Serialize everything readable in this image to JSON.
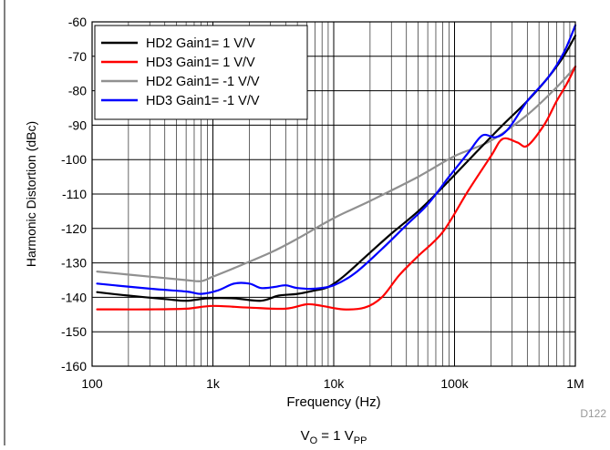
{
  "chart_data": {
    "type": "line",
    "xlabel": "Frequency (Hz)",
    "ylabel": "Harmonic Distortion (dBc)",
    "xscale": "log",
    "xlim": [
      100,
      1000000
    ],
    "ylim": [
      -160,
      -60
    ],
    "x_ticks": [
      {
        "value": 100,
        "label": "100"
      },
      {
        "value": 1000,
        "label": "1k"
      },
      {
        "value": 10000,
        "label": "10k"
      },
      {
        "value": 100000,
        "label": "100k"
      },
      {
        "value": 1000000,
        "label": "1M"
      }
    ],
    "y_ticks": [
      -60,
      -70,
      -80,
      -90,
      -100,
      -110,
      -120,
      -130,
      -140,
      -150,
      -160
    ],
    "grid": true,
    "legend_position": "top-left",
    "caption_main": "V",
    "caption_sub1": "O",
    "caption_mid": " = 1 V",
    "caption_sub2": "PP",
    "figure_id": "D122",
    "series": [
      {
        "name": "HD2 Gain1= 1 V/V",
        "color": "#000000",
        "points": [
          [
            110,
            -138.5
          ],
          [
            200,
            -139.5
          ],
          [
            400,
            -140.5
          ],
          [
            600,
            -141
          ],
          [
            900,
            -140.3
          ],
          [
            1500,
            -140.3
          ],
          [
            2500,
            -141
          ],
          [
            3500,
            -139.5
          ],
          [
            5000,
            -139
          ],
          [
            7000,
            -138
          ],
          [
            9000,
            -137
          ],
          [
            12000,
            -134
          ],
          [
            20000,
            -127
          ],
          [
            30000,
            -121.5
          ],
          [
            50000,
            -115
          ],
          [
            80000,
            -108
          ],
          [
            150000,
            -98
          ],
          [
            250000,
            -90
          ],
          [
            400000,
            -83
          ],
          [
            600000,
            -76
          ],
          [
            800000,
            -70
          ],
          [
            1000000,
            -64
          ]
        ]
      },
      {
        "name": "HD3 Gain1= 1 V/V",
        "color": "#ff0000",
        "points": [
          [
            110,
            -143.5
          ],
          [
            300,
            -143.5
          ],
          [
            600,
            -143.3
          ],
          [
            1000,
            -142.5
          ],
          [
            2000,
            -143
          ],
          [
            4000,
            -143.3
          ],
          [
            6000,
            -142
          ],
          [
            8000,
            -142.5
          ],
          [
            12000,
            -143.5
          ],
          [
            18000,
            -143
          ],
          [
            25000,
            -140
          ],
          [
            35000,
            -133.5
          ],
          [
            50000,
            -128
          ],
          [
            80000,
            -121
          ],
          [
            130000,
            -109
          ],
          [
            200000,
            -99
          ],
          [
            250000,
            -94
          ],
          [
            330000,
            -95
          ],
          [
            400000,
            -96
          ],
          [
            550000,
            -90
          ],
          [
            700000,
            -83
          ],
          [
            850000,
            -78
          ],
          [
            1000000,
            -73
          ]
        ]
      },
      {
        "name": "HD2 Gain1= -1 V/V",
        "color": "#909090",
        "points": [
          [
            110,
            -132.5
          ],
          [
            300,
            -134
          ],
          [
            600,
            -135
          ],
          [
            800,
            -135.3
          ],
          [
            1000,
            -134
          ],
          [
            1500,
            -131.5
          ],
          [
            3000,
            -127
          ],
          [
            5000,
            -123
          ],
          [
            10000,
            -117
          ],
          [
            20000,
            -112
          ],
          [
            50000,
            -105
          ],
          [
            100000,
            -99
          ],
          [
            200000,
            -94.5
          ],
          [
            400000,
            -87
          ],
          [
            700000,
            -79
          ],
          [
            1000000,
            -73
          ]
        ]
      },
      {
        "name": "HD3 Gain1= -1 V/V",
        "color": "#0000ff",
        "points": [
          [
            110,
            -136
          ],
          [
            300,
            -137.5
          ],
          [
            600,
            -138.3
          ],
          [
            800,
            -139
          ],
          [
            1100,
            -138
          ],
          [
            1500,
            -136
          ],
          [
            2000,
            -136
          ],
          [
            2500,
            -137.3
          ],
          [
            3200,
            -137
          ],
          [
            4000,
            -136.5
          ],
          [
            5000,
            -137.3
          ],
          [
            7000,
            -137.5
          ],
          [
            10000,
            -136.5
          ],
          [
            15000,
            -133
          ],
          [
            25000,
            -126
          ],
          [
            40000,
            -119
          ],
          [
            60000,
            -113
          ],
          [
            90000,
            -105
          ],
          [
            130000,
            -98
          ],
          [
            170000,
            -93
          ],
          [
            220000,
            -93.5
          ],
          [
            280000,
            -91
          ],
          [
            400000,
            -83
          ],
          [
            600000,
            -76
          ],
          [
            800000,
            -69
          ],
          [
            1000000,
            -61
          ]
        ]
      }
    ]
  }
}
